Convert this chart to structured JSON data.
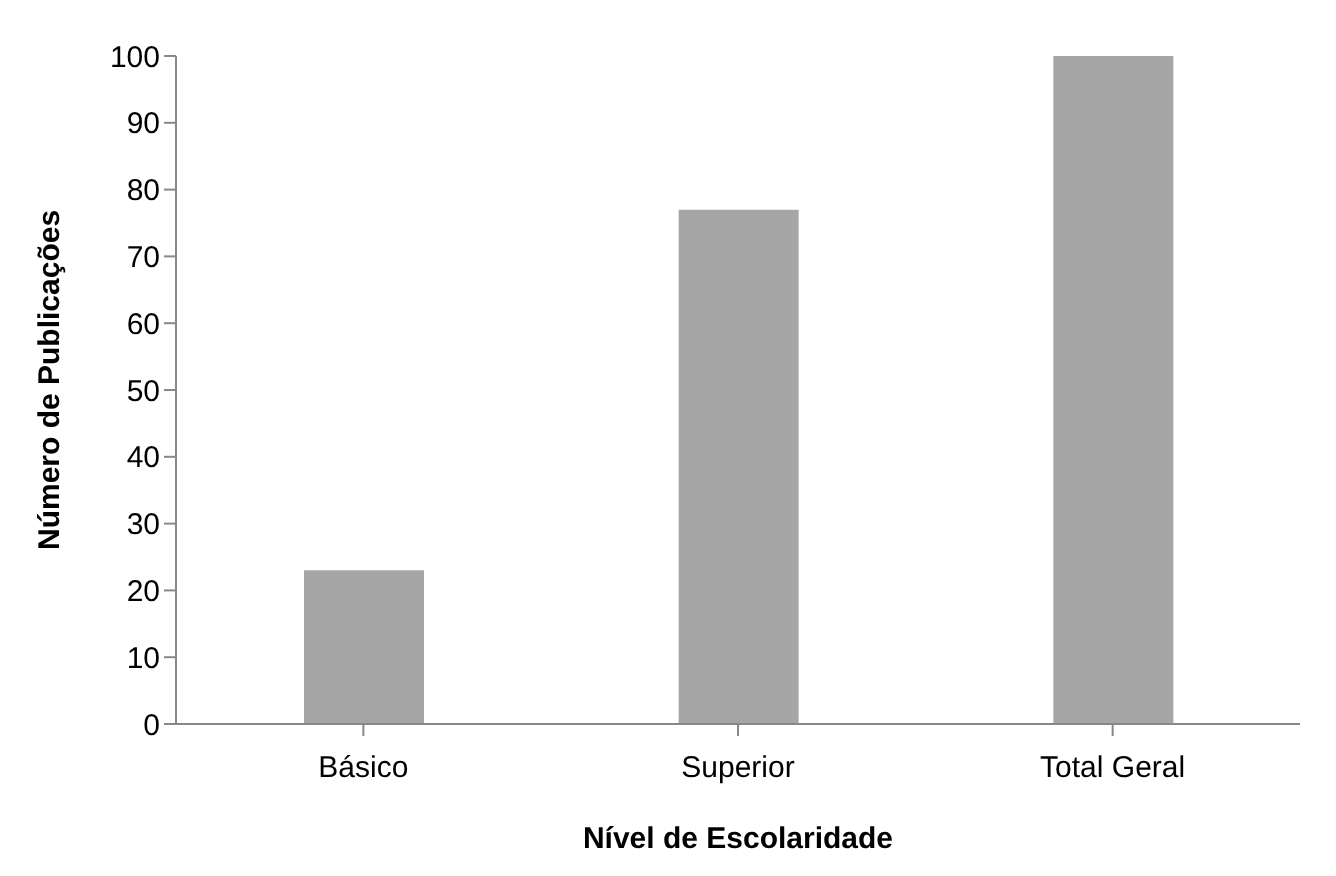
{
  "chart_data": {
    "type": "bar",
    "xlabel": "Nível de Escolaridade",
    "ylabel": "Número de Publicações",
    "categories": [
      "Básico",
      "Superior",
      "Total Geral"
    ],
    "values": [
      23,
      77,
      100
    ],
    "color": "#a6a6a6",
    "ylim": [
      0,
      100
    ],
    "yticks": [
      0,
      10,
      20,
      30,
      40,
      50,
      60,
      70,
      80,
      90,
      100
    ],
    "grid": false,
    "legend": false
  }
}
